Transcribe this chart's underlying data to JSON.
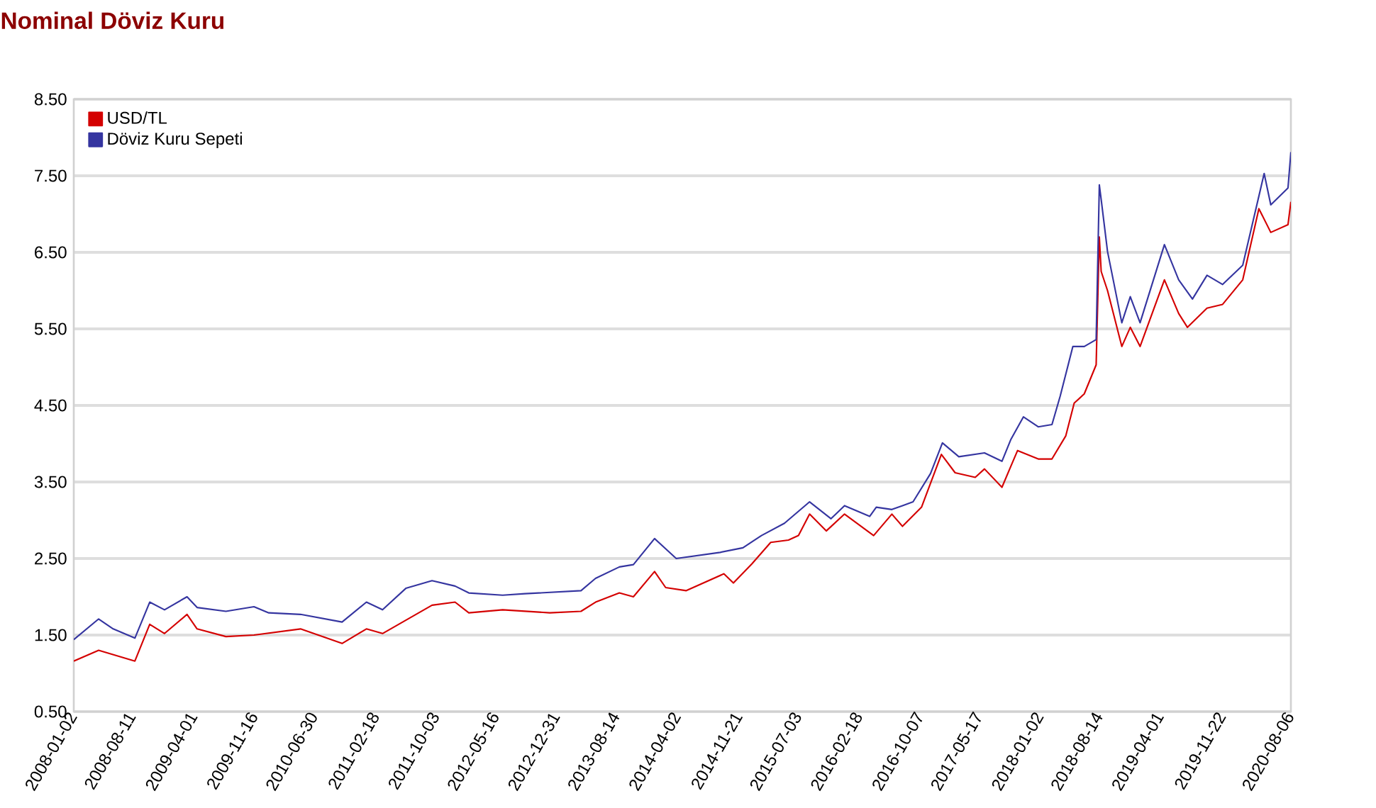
{
  "chart_data": {
    "type": "line",
    "title": "Nominal Döviz Kuru",
    "xlim": [
      "2008-01-02",
      "2020-08-06"
    ],
    "xticks": [
      "2008-01-02",
      "2008-08-11",
      "2009-04-01",
      "2009-11-16",
      "2010-06-30",
      "2011-02-18",
      "2011-10-03",
      "2012-05-16",
      "2012-12-31",
      "2013-08-14",
      "2014-04-02",
      "2014-11-21",
      "2015-07-03",
      "2016-02-18",
      "2016-10-07",
      "2017-05-17",
      "2018-01-02",
      "2018-08-14",
      "2019-04-01",
      "2019-11-22",
      "2020-08-06"
    ],
    "ylim": [
      0.5,
      8.5
    ],
    "yticks": [
      {
        "value": 0.5,
        "label": "0.50"
      },
      {
        "value": 1.5,
        "label": "1.50"
      },
      {
        "value": 2.5,
        "label": "2.50"
      },
      {
        "value": 3.5,
        "label": "3.50"
      },
      {
        "value": 4.5,
        "label": "4.50"
      },
      {
        "value": 5.5,
        "label": "5.50"
      },
      {
        "value": 6.5,
        "label": "6.50"
      },
      {
        "value": 7.5,
        "label": "7.50"
      },
      {
        "value": 8.5,
        "label": "8.50"
      }
    ],
    "grid": "y",
    "legend": "top left",
    "marker": "none",
    "line_style": "solid",
    "series": [
      {
        "name": "USD/TL",
        "color": "#d40000",
        "x": [
          "2008-01-02",
          "2008-04-05",
          "2008-08-20",
          "2008-10-15",
          "2008-12-10",
          "2009-03-05",
          "2009-04-12",
          "2009-07-30",
          "2009-11-13",
          "2010-05-08",
          "2010-10-12",
          "2011-01-12",
          "2011-03-14",
          "2011-09-17",
          "2011-12-13",
          "2012-02-03",
          "2012-06-10",
          "2012-12-05",
          "2013-04-02",
          "2013-05-27",
          "2013-08-25",
          "2013-10-17",
          "2014-01-05",
          "2014-02-16",
          "2014-05-05",
          "2014-09-24",
          "2014-10-30",
          "2015-01-08",
          "2015-03-20",
          "2015-05-26",
          "2015-07-03",
          "2015-08-14",
          "2015-10-16",
          "2015-12-24",
          "2016-04-12",
          "2016-06-20",
          "2016-07-30",
          "2016-10-10",
          "2016-12-24",
          "2017-02-14",
          "2017-05-01",
          "2017-06-05",
          "2017-08-10",
          "2017-09-12",
          "2017-10-08",
          "2017-12-25",
          "2018-02-15",
          "2018-04-08",
          "2018-05-10",
          "2018-06-17",
          "2018-08-01",
          "2018-08-13",
          "2018-08-20",
          "2018-09-13",
          "2018-11-06",
          "2018-12-08",
          "2019-01-14",
          "2019-04-16",
          "2019-06-09",
          "2019-07-12",
          "2019-09-24",
          "2019-11-22",
          "2020-02-06",
          "2020-04-07",
          "2020-05-22",
          "2020-07-26",
          "2020-08-06"
        ],
        "values": [
          1.16,
          1.3,
          1.16,
          1.64,
          1.52,
          1.77,
          1.58,
          1.48,
          1.5,
          1.58,
          1.39,
          1.58,
          1.52,
          1.89,
          1.93,
          1.79,
          1.83,
          1.79,
          1.81,
          1.93,
          2.05,
          2.0,
          2.33,
          2.12,
          2.08,
          2.3,
          2.18,
          2.43,
          2.71,
          2.74,
          2.8,
          3.08,
          2.86,
          3.08,
          2.8,
          3.08,
          2.92,
          3.17,
          3.86,
          3.62,
          3.56,
          3.67,
          3.43,
          3.7,
          3.91,
          3.8,
          3.8,
          4.1,
          4.53,
          4.65,
          5.03,
          6.7,
          6.25,
          6.0,
          5.27,
          5.52,
          5.27,
          6.14,
          5.7,
          5.52,
          5.77,
          5.82,
          6.14,
          7.07,
          6.76,
          6.86,
          7.16
        ]
      },
      {
        "name": "Döviz Kuru Sepeti",
        "color": "#3535a0",
        "x": [
          "2008-01-02",
          "2008-04-05",
          "2008-05-30",
          "2008-08-20",
          "2008-10-15",
          "2008-12-10",
          "2009-03-05",
          "2009-04-12",
          "2009-07-30",
          "2009-11-13",
          "2010-01-08",
          "2010-05-08",
          "2010-10-12",
          "2011-01-12",
          "2011-03-14",
          "2011-06-10",
          "2011-09-17",
          "2011-12-13",
          "2012-02-03",
          "2012-06-10",
          "2012-09-02",
          "2013-04-02",
          "2013-05-27",
          "2013-08-25",
          "2013-10-17",
          "2014-01-05",
          "2014-03-28",
          "2014-09-10",
          "2014-12-05",
          "2015-02-13",
          "2015-05-11",
          "2015-08-14",
          "2015-11-03",
          "2015-12-24",
          "2016-03-28",
          "2016-04-22",
          "2016-06-20",
          "2016-09-08",
          "2016-11-13",
          "2016-12-28",
          "2017-02-28",
          "2017-06-05",
          "2017-08-10",
          "2017-09-12",
          "2017-10-30",
          "2017-12-25",
          "2018-02-15",
          "2018-03-18",
          "2018-05-05",
          "2018-06-17",
          "2018-08-01",
          "2018-08-13",
          "2018-08-20",
          "2018-09-13",
          "2018-11-06",
          "2018-12-08",
          "2019-01-14",
          "2019-04-16",
          "2019-06-09",
          "2019-07-31",
          "2019-09-24",
          "2019-11-22",
          "2020-02-06",
          "2020-04-27",
          "2020-05-22",
          "2020-07-26",
          "2020-08-06"
        ],
        "values": [
          1.44,
          1.71,
          1.58,
          1.46,
          1.93,
          1.83,
          2.0,
          1.86,
          1.81,
          1.87,
          1.79,
          1.77,
          1.67,
          1.93,
          1.83,
          2.11,
          2.21,
          2.14,
          2.05,
          2.02,
          2.04,
          2.08,
          2.24,
          2.39,
          2.42,
          2.76,
          2.5,
          2.58,
          2.64,
          2.8,
          2.96,
          3.24,
          3.02,
          3.19,
          3.05,
          3.17,
          3.14,
          3.24,
          3.61,
          4.01,
          3.83,
          3.88,
          3.77,
          4.05,
          4.35,
          4.22,
          4.25,
          4.62,
          5.27,
          5.27,
          5.36,
          7.38,
          7.19,
          6.51,
          5.58,
          5.92,
          5.58,
          6.6,
          6.14,
          5.89,
          6.2,
          6.08,
          6.33,
          7.53,
          7.12,
          7.34,
          7.81
        ]
      }
    ]
  }
}
